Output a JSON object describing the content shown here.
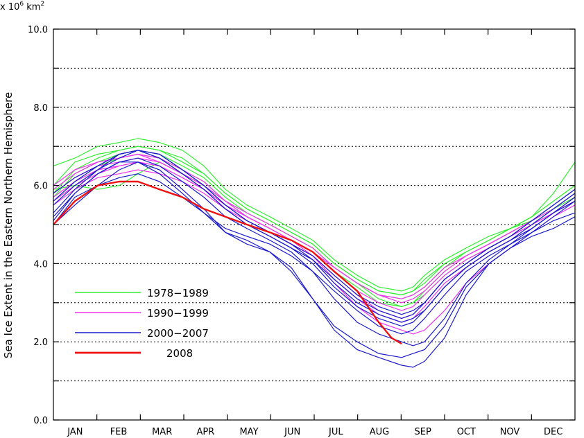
{
  "chart_data": {
    "type": "line",
    "unit_label": {
      "base": "x 10",
      "exp": "6",
      "rest": " km",
      "sq": "2"
    },
    "ylabel": "Sea Ice Extent in the Eastern Northern Hemisphere",
    "ylim": [
      0,
      10
    ],
    "yticks": [
      0,
      1,
      2,
      3,
      4,
      5,
      6,
      7,
      8,
      9,
      10
    ],
    "ytick_labels": [
      {
        "value": 0,
        "label": "0.0"
      },
      {
        "value": 2,
        "label": "2.0"
      },
      {
        "value": 4,
        "label": "4.0"
      },
      {
        "value": 6,
        "label": "6.0"
      },
      {
        "value": 8,
        "label": "8.0"
      },
      {
        "value": 10,
        "label": "10.0"
      }
    ],
    "gridlines": [
      1,
      2,
      3,
      4,
      5,
      6,
      7,
      8,
      9
    ],
    "grid": "horizontal-dotted",
    "months": [
      "JAN",
      "FEB",
      "MAR",
      "APR",
      "MAY",
      "JUN",
      "JUL",
      "AUG",
      "SEP",
      "OCT",
      "NOV",
      "DEC"
    ],
    "legend_position": "bottom-left",
    "colors": {
      "1978-1989": "#33ee33",
      "1990-1999": "#ee33ee",
      "2000-2007": "#1a1acc",
      "2008": "#ee1111"
    },
    "series_groups": [
      {
        "name": "1978−1989",
        "color": "#33ee33",
        "x": [
          1,
          16,
          32,
          47,
          60,
          75,
          91,
          106,
          121,
          136,
          152,
          167,
          182,
          197,
          213,
          228,
          244,
          252,
          260,
          274,
          289,
          305,
          320,
          335,
          350,
          365
        ],
        "lines": [
          [
            6.5,
            6.7,
            7.0,
            7.1,
            7.2,
            7.1,
            6.9,
            6.5,
            5.9,
            5.5,
            5.2,
            4.9,
            4.6,
            4.1,
            3.7,
            3.4,
            3.3,
            3.4,
            3.7,
            4.1,
            4.4,
            4.7,
            4.9,
            5.2,
            5.8,
            6.6
          ],
          [
            6.0,
            6.6,
            6.8,
            6.9,
            7.0,
            6.9,
            6.7,
            6.3,
            5.8,
            5.4,
            5.1,
            4.8,
            4.5,
            4.0,
            3.6,
            3.3,
            3.2,
            3.3,
            3.6,
            4.0,
            4.3,
            4.6,
            4.9,
            5.2,
            5.6,
            6.0
          ],
          [
            5.7,
            6.3,
            6.6,
            6.8,
            6.9,
            6.8,
            6.5,
            6.2,
            5.7,
            5.3,
            5.0,
            4.7,
            4.4,
            3.9,
            3.5,
            3.2,
            3.1,
            3.2,
            3.4,
            3.9,
            4.3,
            4.6,
            4.9,
            5.1,
            5.5,
            5.9
          ],
          [
            5.6,
            6.1,
            6.5,
            6.7,
            6.8,
            6.7,
            6.4,
            6.1,
            5.6,
            5.3,
            5.0,
            4.7,
            4.4,
            3.9,
            3.5,
            3.1,
            2.9,
            3.0,
            3.3,
            3.8,
            4.2,
            4.5,
            4.8,
            5.1,
            5.4,
            5.8
          ],
          [
            5.9,
            6.0,
            5.9,
            6.0,
            6.3,
            6.6,
            6.3,
            6.0,
            5.6,
            5.2,
            4.9,
            4.6,
            4.3,
            3.8,
            3.4,
            3.0,
            2.9,
            3.0,
            3.2,
            3.7,
            4.1,
            4.4,
            4.7,
            5.0,
            5.4,
            5.7
          ],
          [
            5.8,
            6.4,
            6.7,
            6.9,
            7.0,
            6.9,
            6.6,
            6.3,
            5.8,
            5.4,
            5.1,
            4.8,
            4.5,
            4.0,
            3.6,
            3.3,
            3.2,
            3.3,
            3.5,
            4.0,
            4.3,
            4.6,
            4.9,
            5.2,
            5.6,
            6.0
          ]
        ]
      },
      {
        "name": "1990−1999",
        "color": "#ee33ee",
        "x": [
          1,
          16,
          32,
          47,
          60,
          75,
          91,
          106,
          121,
          136,
          152,
          167,
          182,
          197,
          213,
          228,
          244,
          252,
          260,
          274,
          289,
          305,
          320,
          335,
          350,
          365
        ],
        "lines": [
          [
            5.9,
            6.3,
            6.6,
            6.7,
            6.8,
            6.7,
            6.4,
            6.1,
            5.6,
            5.3,
            5.0,
            4.7,
            4.4,
            3.9,
            3.5,
            3.2,
            3.0,
            3.1,
            3.3,
            3.8,
            4.2,
            4.5,
            4.8,
            5.1,
            5.4,
            5.8
          ],
          [
            5.7,
            6.1,
            6.4,
            6.5,
            6.6,
            6.5,
            6.2,
            5.9,
            5.5,
            5.2,
            4.9,
            4.6,
            4.3,
            3.8,
            3.3,
            3.0,
            2.8,
            2.9,
            3.2,
            3.7,
            4.1,
            4.4,
            4.7,
            5.0,
            5.3,
            5.6
          ],
          [
            5.5,
            5.9,
            6.2,
            6.3,
            6.4,
            6.3,
            6.1,
            5.8,
            5.4,
            5.1,
            4.8,
            4.5,
            4.1,
            3.5,
            2.9,
            2.5,
            2.3,
            2.2,
            2.3,
            2.8,
            3.5,
            4.0,
            4.4,
            4.8,
            5.2,
            5.5
          ],
          [
            6.0,
            6.4,
            6.6,
            6.7,
            6.8,
            6.6,
            6.3,
            6.0,
            5.6,
            5.2,
            4.9,
            4.6,
            4.3,
            3.9,
            3.5,
            3.2,
            3.1,
            3.2,
            3.4,
            3.9,
            4.2,
            4.5,
            4.8,
            5.1,
            5.5,
            5.9
          ],
          [
            5.8,
            6.2,
            6.5,
            6.6,
            6.7,
            6.6,
            6.3,
            6.0,
            5.5,
            5.2,
            4.9,
            4.6,
            4.2,
            3.7,
            3.2,
            2.8,
            2.6,
            2.7,
            3.0,
            3.6,
            4.0,
            4.4,
            4.7,
            5.0,
            5.3,
            5.7
          ],
          [
            5.6,
            6.0,
            6.3,
            6.5,
            6.6,
            6.5,
            6.2,
            5.9,
            5.5,
            5.1,
            4.8,
            4.5,
            4.2,
            3.6,
            3.1,
            2.7,
            2.5,
            2.6,
            2.9,
            3.5,
            3.9,
            4.3,
            4.6,
            4.9,
            5.3,
            5.6
          ]
        ]
      },
      {
        "name": "2000−2007",
        "color": "#1a1acc",
        "x": [
          1,
          16,
          32,
          47,
          60,
          75,
          91,
          106,
          121,
          136,
          152,
          167,
          182,
          197,
          213,
          228,
          244,
          252,
          260,
          274,
          289,
          305,
          320,
          335,
          350,
          365
        ],
        "lines": [
          [
            5.2,
            5.8,
            6.3,
            6.6,
            6.7,
            6.5,
            6.1,
            5.7,
            5.2,
            4.9,
            4.6,
            4.3,
            3.8,
            3.1,
            2.5,
            2.2,
            2.0,
            1.9,
            2.0,
            2.6,
            3.5,
            4.1,
            4.5,
            4.9,
            5.3,
            5.6
          ],
          [
            5.5,
            6.0,
            6.4,
            6.7,
            6.9,
            6.7,
            6.3,
            5.9,
            5.4,
            5.0,
            4.7,
            4.4,
            4.1,
            3.5,
            3.0,
            2.7,
            2.5,
            2.6,
            2.8,
            3.4,
            3.9,
            4.3,
            4.6,
            4.9,
            5.3,
            5.7
          ],
          [
            5.3,
            5.9,
            6.4,
            6.8,
            6.9,
            6.7,
            6.3,
            5.9,
            5.4,
            5.0,
            4.7,
            4.4,
            4.0,
            3.4,
            2.9,
            2.6,
            2.4,
            2.5,
            2.8,
            3.4,
            3.9,
            4.3,
            4.6,
            5.0,
            5.4,
            5.8
          ],
          [
            5.0,
            5.5,
            6.0,
            6.2,
            6.3,
            6.1,
            5.7,
            5.3,
            4.9,
            4.7,
            4.5,
            4.2,
            3.8,
            3.3,
            2.8,
            2.4,
            2.2,
            2.3,
            2.6,
            3.2,
            3.8,
            4.2,
            4.5,
            4.8,
            5.1,
            5.3
          ],
          [
            5.8,
            6.2,
            6.5,
            6.8,
            6.9,
            6.8,
            6.4,
            6.0,
            5.5,
            5.1,
            4.8,
            4.5,
            4.2,
            3.7,
            3.2,
            2.9,
            2.7,
            2.8,
            3.0,
            3.6,
            4.0,
            4.4,
            4.7,
            5.1,
            5.5,
            5.9
          ],
          [
            5.6,
            6.1,
            6.5,
            6.8,
            6.9,
            6.8,
            6.4,
            6.0,
            5.5,
            5.1,
            4.8,
            4.5,
            4.1,
            3.6,
            3.1,
            2.8,
            2.6,
            2.7,
            3.0,
            3.6,
            4.0,
            4.4,
            4.7,
            5.1,
            5.5,
            5.9
          ],
          [
            5.1,
            5.8,
            6.3,
            6.6,
            6.6,
            6.3,
            5.8,
            5.3,
            4.8,
            4.5,
            4.3,
            3.8,
            3.1,
            2.4,
            2.0,
            1.7,
            1.6,
            1.7,
            1.8,
            2.4,
            3.4,
            4.0,
            4.4,
            4.8,
            5.2,
            5.6
          ],
          [
            5.0,
            5.7,
            6.0,
            6.4,
            6.6,
            6.4,
            5.9,
            5.4,
            4.8,
            4.6,
            4.3,
            3.9,
            3.1,
            2.3,
            1.8,
            1.6,
            1.4,
            1.35,
            1.5,
            2.1,
            3.2,
            4.0,
            4.4,
            4.7,
            4.9,
            5.2
          ]
        ]
      },
      {
        "name": "2008",
        "color": "#ee1111",
        "x": [
          1,
          16,
          32,
          47,
          60,
          75,
          91,
          106,
          121,
          136,
          152,
          167,
          182,
          197,
          213,
          228,
          237,
          244
        ],
        "lines": [
          [
            5.0,
            5.6,
            6.0,
            6.1,
            6.1,
            5.9,
            5.7,
            5.4,
            5.2,
            5.0,
            4.8,
            4.6,
            4.3,
            3.8,
            3.3,
            2.5,
            2.1,
            1.95
          ]
        ]
      }
    ]
  }
}
